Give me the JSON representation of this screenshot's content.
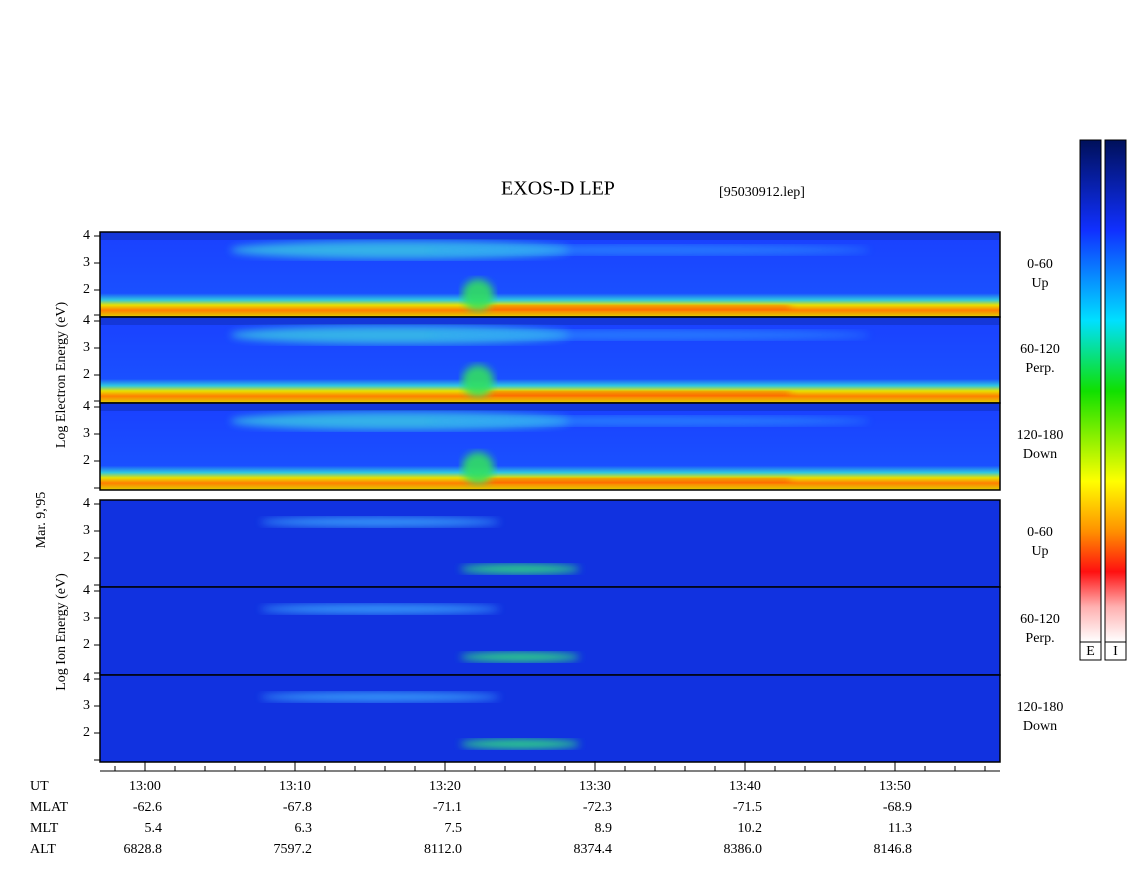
{
  "title": "EXOS-D LEP",
  "file": "[95030912.lep]",
  "date": "Mar. 9,'95",
  "electron_ylabel": "Log Electron Energy (eV)",
  "ion_ylabel": "Log Ion Energy (eV)",
  "panels": [
    {
      "species": "electron",
      "angle": "0-60",
      "direction": "Up",
      "yticks": [
        "4",
        "3",
        "2"
      ]
    },
    {
      "species": "electron",
      "angle": "60-120",
      "direction": "Perp.",
      "yticks": [
        "4",
        "3",
        "2"
      ]
    },
    {
      "species": "electron",
      "angle": "120-180",
      "direction": "Down",
      "yticks": [
        "4",
        "3",
        "2"
      ]
    },
    {
      "species": "ion",
      "angle": "0-60",
      "direction": "Up",
      "yticks": [
        "4",
        "3",
        "2"
      ]
    },
    {
      "species": "ion",
      "angle": "60-120",
      "direction": "Perp.",
      "yticks": [
        "4",
        "3",
        "2"
      ]
    },
    {
      "species": "ion",
      "angle": "120-180",
      "direction": "Down",
      "yticks": [
        "4",
        "3",
        "2"
      ]
    }
  ],
  "x_rows": [
    {
      "name": "UT",
      "values": [
        "13:00",
        "13:10",
        "13:20",
        "13:30",
        "13:40",
        "13:50"
      ]
    },
    {
      "name": "MLAT",
      "values": [
        "-62.6",
        "-67.8",
        "-71.1",
        "-72.3",
        "-71.5",
        "-68.9"
      ]
    },
    {
      "name": "MLT",
      "values": [
        "5.4",
        "6.3",
        "7.5",
        "8.9",
        "10.2",
        "11.3"
      ]
    },
    {
      "name": "ALT",
      "values": [
        "6828.8",
        "7597.2",
        "8112.0",
        "8374.4",
        "8386.0",
        "8146.8"
      ]
    }
  ],
  "colorbars": [
    "E",
    "I"
  ]
}
